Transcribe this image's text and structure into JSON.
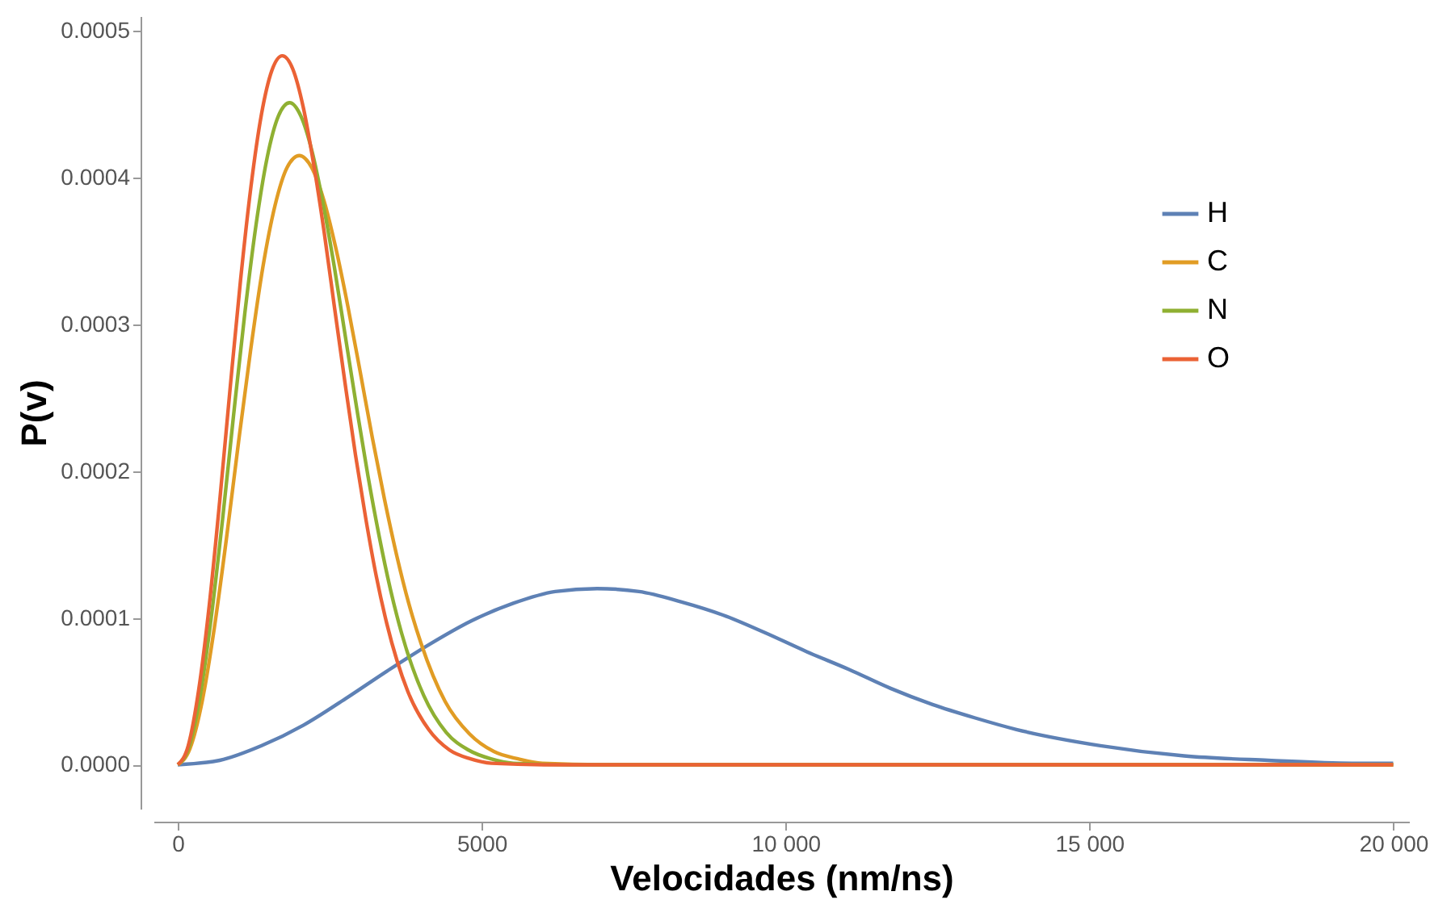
{
  "chart_data": {
    "type": "line",
    "xlabel": "Velocidades (nm/ns)",
    "ylabel": "P(v)",
    "xlim": [
      -400,
      20260
    ],
    "ylim": [
      -3e-05,
      0.00051
    ],
    "xticks": [
      0,
      5000,
      {
        "value": 10000,
        "label": "10 000"
      },
      {
        "value": 15000,
        "label": "15 000"
      },
      {
        "value": 20000,
        "label": "20 000"
      }
    ],
    "yticks": [
      {
        "value": 0,
        "label": "0.0000"
      },
      {
        "value": 0.0001,
        "label": "0.0001"
      },
      {
        "value": 0.0002,
        "label": "0.0002"
      },
      {
        "value": 0.0003,
        "label": "0.0003"
      },
      {
        "value": 0.0004,
        "label": "0.0004"
      },
      {
        "value": 0.0005,
        "label": "0.0005"
      }
    ],
    "grid": false,
    "legend": "top right",
    "marker": "none",
    "line_style": "solid",
    "series": [
      {
        "name": "H",
        "color": "#5e81b5",
        "x": [
          0,
          690,
          1380,
          2070,
          2760,
          3450,
          4140,
          4830,
          5520,
          6210,
          6900,
          7590,
          8280,
          8970,
          9660,
          10350,
          11040,
          11730,
          12420,
          13110,
          13800,
          15180,
          16560,
          17940,
          19320,
          20000
        ],
        "values": [
          0,
          3e-06,
          1.3e-05,
          2.7e-05,
          4.5e-05,
          6.4e-05,
          8.2e-05,
          9.8e-05,
          0.00011,
          0.000118,
          0.00012,
          0.000118,
          0.000111,
          0.000102,
          9e-05,
          7.7e-05,
          6.5e-05,
          5.2e-05,
          4.1e-05,
          3.2e-05,
          2.4e-05,
          1.3e-05,
          6e-06,
          3e-06,
          1e-06,
          1e-06
        ]
      },
      {
        "name": "C",
        "color": "#e19c24",
        "x": [
          0,
          200,
          400,
          600,
          800,
          1000,
          1200,
          1400,
          1600,
          1800,
          2000,
          2200,
          2400,
          2600,
          2800,
          3000,
          3200,
          3400,
          3600,
          3800,
          4000,
          4400,
          4800,
          5200,
          5600,
          6000,
          7000,
          20000
        ],
        "values": [
          0,
          1.1e-05,
          4.3e-05,
          9.3e-05,
          0.000154,
          0.00022,
          0.000283,
          0.000339,
          0.000381,
          0.000407,
          0.000415,
          0.000407,
          0.000385,
          0.000352,
          0.000312,
          0.000268,
          0.000223,
          0.000181,
          0.000143,
          0.00011,
          8.3e-05,
          4.3e-05,
          2.1e-05,
          9e-06,
          4e-06,
          1e-06,
          0,
          0
        ]
      },
      {
        "name": "N",
        "color": "#8fb032",
        "x": [
          0,
          184,
          368,
          552,
          736,
          920,
          1104,
          1288,
          1472,
          1656,
          1840,
          2024,
          2208,
          2392,
          2576,
          2760,
          2944,
          3128,
          3312,
          3496,
          3680,
          4048,
          4416,
          4784,
          5152,
          5520,
          6440,
          20000
        ],
        "values": [
          0,
          1.2e-05,
          4.7e-05,
          0.000101,
          0.000167,
          0.000239,
          0.000308,
          0.000368,
          0.000414,
          0.000442,
          0.000451,
          0.000442,
          0.000418,
          0.000382,
          0.000339,
          0.000291,
          0.000243,
          0.000197,
          0.000156,
          0.00012,
          9e-05,
          4.7e-05,
          2.2e-05,
          1e-05,
          4e-06,
          1e-06,
          0,
          0
        ]
      },
      {
        "name": "O",
        "color": "#eb6235",
        "x": [
          0,
          172,
          344,
          516,
          688,
          860,
          1032,
          1204,
          1376,
          1548,
          1720,
          1892,
          2064,
          2236,
          2408,
          2580,
          2752,
          2924,
          3096,
          3268,
          3440,
          3784,
          4128,
          4472,
          4816,
          5160,
          6020,
          20000
        ],
        "values": [
          0,
          1.3e-05,
          5.1e-05,
          0.000108,
          0.000179,
          0.000256,
          0.00033,
          0.000394,
          0.000443,
          0.000473,
          0.000483,
          0.000474,
          0.000448,
          0.000409,
          0.000363,
          0.000311,
          0.00026,
          0.000211,
          0.000167,
          0.000128,
          9.6e-05,
          5e-05,
          2.4e-05,
          1e-05,
          4e-06,
          1e-06,
          0,
          0
        ]
      }
    ]
  }
}
